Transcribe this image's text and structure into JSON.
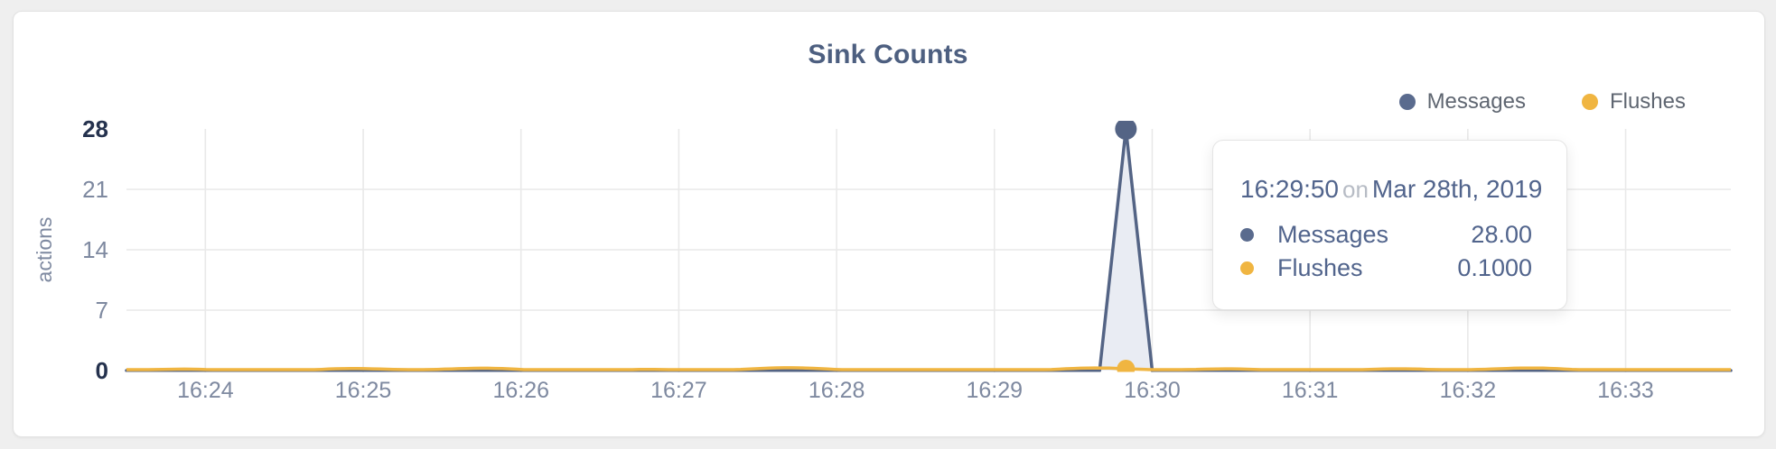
{
  "card": {
    "title": "Sink Counts"
  },
  "colors": {
    "page_background": "#efefef",
    "card_background": "#ffffff",
    "title_text": "#4d5f80",
    "axis_text": "#7e89a0",
    "axis_text_emphasized": "#25324e",
    "gridline": "#e9e9e9",
    "crosshair": "#cfcfcf",
    "messages": "#546485",
    "messages_fill": "#e9ecf3",
    "flushes": "#f0b541"
  },
  "legend": {
    "items": [
      {
        "label": "Messages",
        "color": "#5a6b8e"
      },
      {
        "label": "Flushes",
        "color": "#f0b541"
      }
    ]
  },
  "tooltip": {
    "time": "16:29:50",
    "conjunction": "on",
    "date": "Mar 28th, 2019",
    "rows": [
      {
        "label": "Messages",
        "value": "28.00",
        "color": "#5a6b8e"
      },
      {
        "label": "Flushes",
        "value": "0.1000",
        "color": "#f0b541"
      }
    ]
  },
  "chart_data": {
    "type": "area",
    "title": "Sink Counts",
    "xlabel": "",
    "ylabel": "actions",
    "ylim": [
      0,
      28
    ],
    "y_ticks": [
      28,
      21,
      14,
      7,
      0
    ],
    "y_ticks_emphasized": [
      28,
      0
    ],
    "x_ticks": [
      "16:24",
      "16:25",
      "16:26",
      "16:27",
      "16:28",
      "16:29",
      "16:30",
      "16:31",
      "16:32",
      "16:33"
    ],
    "x_range": {
      "start": "16:23:30",
      "end": "16:33:40"
    },
    "grid": {
      "vertical_at_x_ticks": true,
      "horizontal_at": [
        21,
        14,
        7
      ]
    },
    "legend_position": "top-right",
    "highlight": {
      "time": "16:29:50",
      "date": "Mar 28th, 2019",
      "messages": 28.0,
      "flushes": 0.1
    },
    "series": [
      {
        "name": "Messages",
        "color": "#546485",
        "fill": "#e9ecf3",
        "points": [
          [
            "16:23:30",
            0
          ],
          [
            "16:29:40",
            0
          ],
          [
            "16:29:50",
            28
          ],
          [
            "16:30:00",
            0
          ],
          [
            "16:33:40",
            0
          ]
        ]
      },
      {
        "name": "Flushes",
        "color": "#f0b541",
        "points": [
          [
            "16:23:30",
            0.1
          ],
          [
            "16:29:50",
            0.1
          ],
          [
            "16:33:40",
            0.1
          ]
        ],
        "note": "stays near 0.1 across the whole range (tiny ripple at the zero line)"
      }
    ]
  }
}
